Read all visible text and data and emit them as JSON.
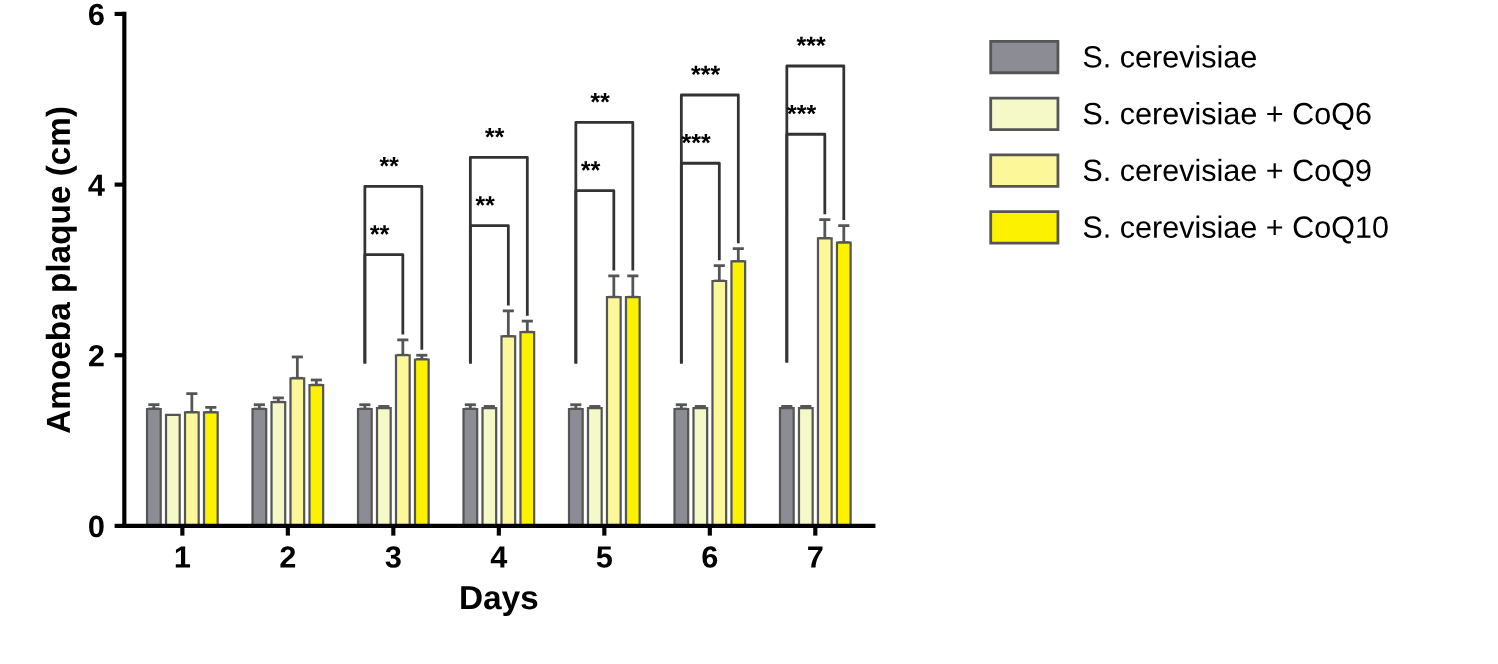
{
  "chart_data": {
    "type": "bar",
    "xlabel": "Days",
    "ylabel": "Amoeba plaque (cm)",
    "categories": [
      "1",
      "2",
      "3",
      "4",
      "5",
      "6",
      "7"
    ],
    "series": [
      {
        "name": "S. cerevisiae",
        "color": "#8c8c94",
        "values": [
          1.37,
          1.37,
          1.37,
          1.37,
          1.37,
          1.37,
          1.38
        ],
        "errors": [
          0.05,
          0.05,
          0.05,
          0.05,
          0.05,
          0.05,
          0.02
        ]
      },
      {
        "name": "S. cerevisiae + CoQ6",
        "color": "#f5f9c8",
        "values": [
          1.3,
          1.45,
          1.38,
          1.38,
          1.38,
          1.38,
          1.38
        ],
        "errors": [
          null,
          0.05,
          0.02,
          0.02,
          0.02,
          0.02,
          0.02
        ]
      },
      {
        "name": "S. cerevisiae + CoQ9",
        "color": "#fcf89a",
        "values": [
          1.33,
          1.73,
          2.0,
          2.22,
          2.68,
          2.87,
          3.37
        ],
        "errors": [
          0.22,
          0.25,
          0.18,
          0.3,
          0.25,
          0.18,
          0.22
        ]
      },
      {
        "name": "S. cerevisiae + CoQ10",
        "color": "#fcf200",
        "values": [
          1.33,
          1.65,
          1.95,
          2.27,
          2.68,
          3.1,
          3.32
        ],
        "errors": [
          0.06,
          0.06,
          0.05,
          0.13,
          0.25,
          0.15,
          0.2
        ]
      }
    ],
    "ylim": [
      0,
      6
    ],
    "yticks": [
      0,
      2,
      4,
      6
    ],
    "grid": false,
    "legend": "top right",
    "annotations": [
      "**",
      "**",
      "**",
      "**",
      "**",
      "**",
      "***",
      "***",
      "***",
      "***"
    ]
  }
}
